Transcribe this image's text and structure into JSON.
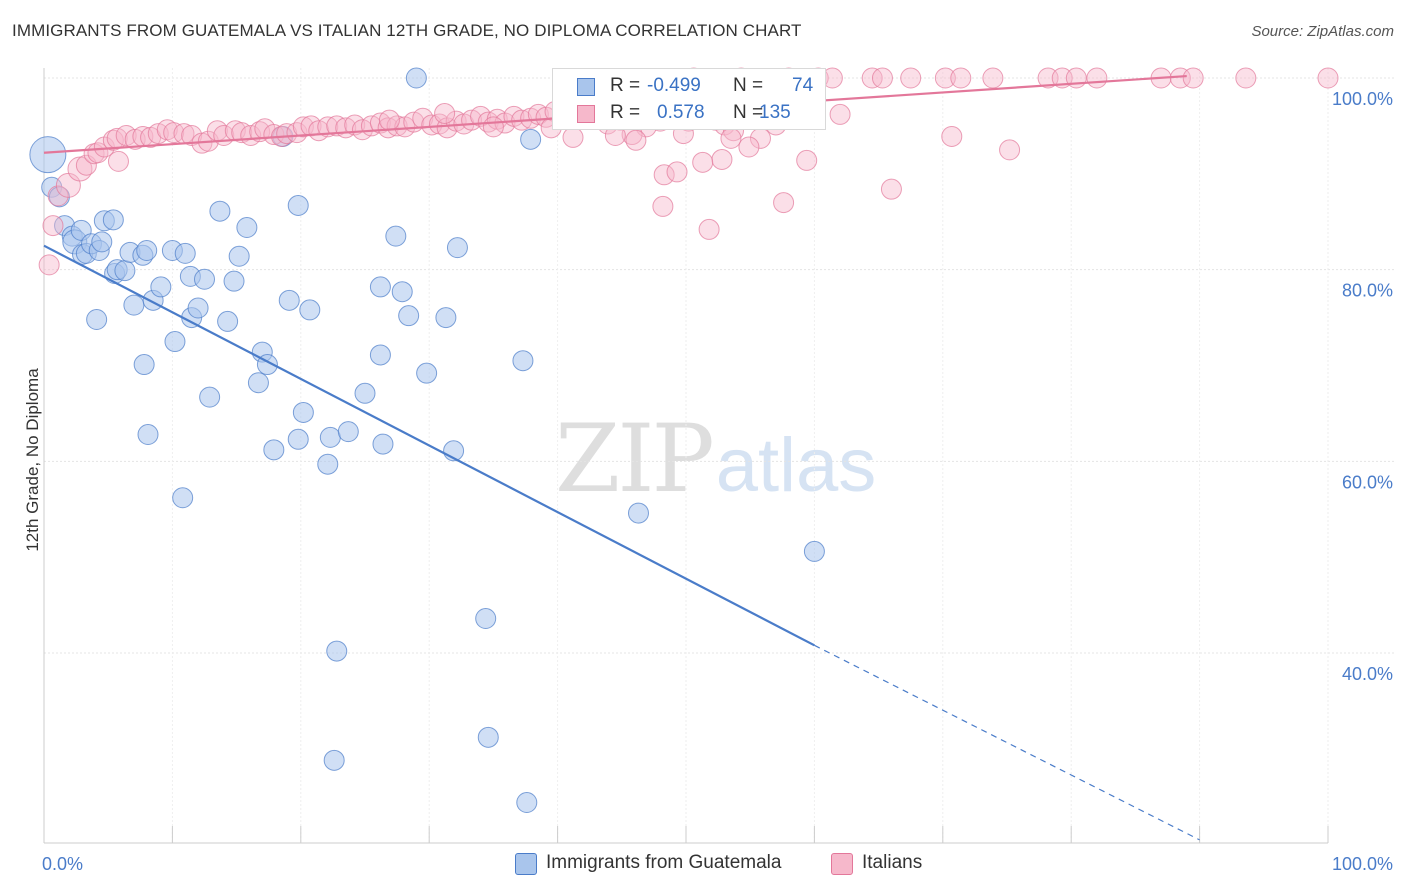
{
  "title": "IMMIGRANTS FROM GUATEMALA VS ITALIAN 12TH GRADE, NO DIPLOMA CORRELATION CHART",
  "source": "Source: ZipAtlas.com",
  "watermark": {
    "zip": "ZIP",
    "atlas": "atlas"
  },
  "legend": {
    "r_label": "R =",
    "n_label": "N =",
    "rows": [
      {
        "name": "Immigrants from Guatemala",
        "r": "-0.499",
        "n": "74",
        "color": "#4a7cc9",
        "fill": "#a9c5ec"
      },
      {
        "name": "Italians",
        "r": "0.578",
        "n": "135",
        "color": "#e3779a",
        "fill": "#f6b8cb"
      }
    ]
  },
  "chart_data": {
    "type": "scatter",
    "title": "IMMIGRANTS FROM GUATEMALA VS ITALIAN 12TH GRADE, NO DIPLOMA CORRELATION CHART",
    "xlabel": "",
    "ylabel": "12th Grade, No Diploma",
    "xlim": [
      0,
      100
    ],
    "ylim": [
      20,
      103
    ],
    "x_tick_labels": [
      {
        "value": 0,
        "label": "0.0%"
      },
      {
        "value": 100,
        "label": "100.0%"
      }
    ],
    "y_tick_labels": [
      {
        "value": 100,
        "label": "100.0%"
      },
      {
        "value": 80,
        "label": "80.0%"
      },
      {
        "value": 60,
        "label": "60.0%"
      },
      {
        "value": 40,
        "label": "40.0%"
      }
    ],
    "grid": true,
    "legend_position": "top-center",
    "series": [
      {
        "name": "Immigrants from Guatemala",
        "color": "#4a7cc9",
        "fill": "#a9c5ec",
        "r": -0.499,
        "n": 74,
        "trend": {
          "x0": 0,
          "y0": 82.5,
          "x1": 60,
          "y1": 40.8,
          "dash_to_x": 90,
          "dash_to_y": 20.5
        },
        "points": [
          [
            0.3,
            92,
            18
          ],
          [
            0.6,
            88.6,
            10
          ],
          [
            1.2,
            87.6,
            10
          ],
          [
            1.6,
            84.6,
            10
          ],
          [
            2.2,
            83.5,
            10
          ],
          [
            2.4,
            82.9,
            12
          ],
          [
            2.9,
            84.1,
            10
          ],
          [
            3.0,
            81.6,
            10
          ],
          [
            3.3,
            81.7,
            10
          ],
          [
            3.7,
            82.7,
            10
          ],
          [
            4.3,
            82.0,
            10
          ],
          [
            4.5,
            82.9,
            10
          ],
          [
            4.7,
            85.1,
            10
          ],
          [
            5.5,
            79.6,
            10
          ],
          [
            5.7,
            80.0,
            10
          ],
          [
            4.1,
            74.8,
            10
          ],
          [
            6.3,
            79.9,
            10
          ],
          [
            5.4,
            85.2,
            10
          ],
          [
            6.7,
            81.8,
            10
          ],
          [
            7.0,
            76.3,
            10
          ],
          [
            7.7,
            81.5,
            10
          ],
          [
            8.0,
            82.0,
            10
          ],
          [
            8.5,
            76.8,
            10
          ],
          [
            9.1,
            78.2,
            10
          ],
          [
            8.1,
            62.8,
            10
          ],
          [
            7.8,
            70.1,
            10
          ],
          [
            10.0,
            82.0,
            10
          ],
          [
            10.2,
            72.5,
            10
          ],
          [
            11.0,
            81.7,
            10
          ],
          [
            11.4,
            79.3,
            10
          ],
          [
            11.5,
            75.0,
            10
          ],
          [
            12.0,
            76.0,
            10
          ],
          [
            12.5,
            79.0,
            10
          ],
          [
            12.9,
            66.7,
            10
          ],
          [
            10.8,
            56.2,
            10
          ],
          [
            13.7,
            86.1,
            10
          ],
          [
            14.3,
            74.6,
            10
          ],
          [
            14.8,
            78.8,
            10
          ],
          [
            15.2,
            81.4,
            10
          ],
          [
            15.8,
            84.4,
            10
          ],
          [
            16.7,
            68.2,
            10
          ],
          [
            17.0,
            71.4,
            10
          ],
          [
            17.4,
            70.1,
            10
          ],
          [
            17.9,
            61.2,
            10
          ],
          [
            18.6,
            93.9,
            10
          ],
          [
            19.1,
            76.8,
            10
          ],
          [
            19.8,
            62.3,
            10
          ],
          [
            20.2,
            65.1,
            10
          ],
          [
            19.8,
            86.7,
            10
          ],
          [
            20.7,
            75.8,
            10
          ],
          [
            22.1,
            59.7,
            10
          ],
          [
            22.3,
            62.5,
            10
          ],
          [
            22.8,
            40.2,
            10
          ],
          [
            22.6,
            28.8,
            10
          ],
          [
            23.7,
            63.1,
            10
          ],
          [
            25.0,
            67.1,
            10
          ],
          [
            26.2,
            78.2,
            10
          ],
          [
            26.2,
            71.1,
            10
          ],
          [
            26.4,
            61.8,
            10
          ],
          [
            27.4,
            83.5,
            10
          ],
          [
            27.9,
            77.7,
            10
          ],
          [
            28.4,
            75.2,
            10
          ],
          [
            29.0,
            100.0,
            10
          ],
          [
            29.8,
            69.2,
            10
          ],
          [
            31.3,
            75.0,
            10
          ],
          [
            31.9,
            61.1,
            10
          ],
          [
            32.2,
            82.3,
            10
          ],
          [
            34.4,
            43.6,
            10
          ],
          [
            34.6,
            31.2,
            10
          ],
          [
            37.3,
            70.5,
            10
          ],
          [
            37.6,
            24.4,
            10
          ],
          [
            37.9,
            93.6,
            10
          ],
          [
            43.1,
            97.6,
            10
          ],
          [
            46.3,
            54.6,
            10
          ],
          [
            60.0,
            50.6,
            10
          ]
        ]
      },
      {
        "name": "Italians",
        "color": "#e3779a",
        "fill": "#f6b8cb",
        "r": 0.578,
        "n": 135,
        "trend": {
          "x0": 0,
          "y0": 92.2,
          "x1": 89,
          "y1": 100.2
        },
        "points": [
          [
            0.4,
            80.5,
            10
          ],
          [
            0.7,
            84.6,
            10
          ],
          [
            1.1,
            87.7,
            10
          ],
          [
            1.9,
            88.8,
            12
          ],
          [
            2.8,
            90.5,
            12
          ],
          [
            3.3,
            90.9,
            10
          ],
          [
            3.9,
            92.1,
            10
          ],
          [
            4.2,
            92.2,
            10
          ],
          [
            4.7,
            92.8,
            10
          ],
          [
            5.4,
            93.5,
            10
          ],
          [
            5.7,
            93.7,
            10
          ],
          [
            5.8,
            91.3,
            10
          ],
          [
            6.4,
            94.0,
            10
          ],
          [
            7.1,
            93.6,
            10
          ],
          [
            7.7,
            93.9,
            10
          ],
          [
            8.3,
            93.8,
            10
          ],
          [
            8.9,
            94.2,
            10
          ],
          [
            9.6,
            94.6,
            10
          ],
          [
            10.1,
            94.3,
            10
          ],
          [
            10.9,
            94.2,
            10
          ],
          [
            11.5,
            94.0,
            10
          ],
          [
            12.3,
            93.2,
            10
          ],
          [
            12.8,
            93.4,
            10
          ],
          [
            13.5,
            94.5,
            10
          ],
          [
            14.0,
            94.0,
            10
          ],
          [
            14.9,
            94.5,
            10
          ],
          [
            15.4,
            94.3,
            10
          ],
          [
            16.1,
            94.0,
            10
          ],
          [
            16.8,
            94.4,
            10
          ],
          [
            17.2,
            94.7,
            10
          ],
          [
            17.9,
            94.1,
            10
          ],
          [
            18.5,
            93.9,
            10
          ],
          [
            18.9,
            94.2,
            10
          ],
          [
            19.7,
            94.3,
            10
          ],
          [
            20.2,
            94.9,
            10
          ],
          [
            20.8,
            95.0,
            10
          ],
          [
            21.4,
            94.5,
            10
          ],
          [
            22.1,
            94.9,
            10
          ],
          [
            22.8,
            95.0,
            10
          ],
          [
            23.5,
            94.8,
            10
          ],
          [
            24.2,
            95.1,
            10
          ],
          [
            24.8,
            94.6,
            10
          ],
          [
            25.5,
            95.0,
            10
          ],
          [
            26.2,
            95.3,
            10
          ],
          [
            26.8,
            94.8,
            10
          ],
          [
            27.5,
            95.0,
            10
          ],
          [
            28.1,
            94.9,
            10
          ],
          [
            28.8,
            95.4,
            10
          ],
          [
            29.5,
            95.8,
            10
          ],
          [
            30.2,
            95.1,
            10
          ],
          [
            30.8,
            95.2,
            10
          ],
          [
            31.4,
            94.8,
            10
          ],
          [
            32.1,
            95.5,
            10
          ],
          [
            32.7,
            95.2,
            10
          ],
          [
            33.3,
            95.6,
            10
          ],
          [
            34.0,
            96.0,
            10
          ],
          [
            34.6,
            95.4,
            10
          ],
          [
            35.3,
            95.7,
            10
          ],
          [
            35.9,
            95.3,
            10
          ],
          [
            36.6,
            96.0,
            10
          ],
          [
            37.2,
            95.6,
            10
          ],
          [
            37.9,
            95.8,
            10
          ],
          [
            38.5,
            96.2,
            10
          ],
          [
            39.1,
            95.9,
            10
          ],
          [
            39.8,
            96.5,
            10
          ],
          [
            40.4,
            96.1,
            10
          ],
          [
            41.0,
            96.3,
            10
          ],
          [
            41.7,
            96.6,
            10
          ],
          [
            42.3,
            96.2,
            10
          ],
          [
            43.0,
            95.8,
            10
          ],
          [
            43.6,
            96.4,
            10
          ],
          [
            44.3,
            96.8,
            10
          ],
          [
            44.9,
            95.6,
            10
          ],
          [
            45.6,
            96.1,
            10
          ],
          [
            46.2,
            96.4,
            10
          ],
          [
            46.9,
            94.9,
            10
          ],
          [
            47.5,
            96.5,
            10
          ],
          [
            48.2,
            96.8,
            10
          ],
          [
            26.9,
            95.6,
            10
          ],
          [
            31.2,
            96.3,
            10
          ],
          [
            35.0,
            94.9,
            10
          ],
          [
            39.5,
            94.8,
            10
          ],
          [
            45.8,
            94.1,
            10
          ],
          [
            46.1,
            93.5,
            10
          ],
          [
            48.0,
            95.5,
            10
          ],
          [
            48.7,
            97.7,
            10
          ],
          [
            49.2,
            96.7,
            10
          ],
          [
            50.2,
            95.5,
            10
          ],
          [
            50.6,
            100.0,
            10
          ],
          [
            51.1,
            96.2,
            10
          ],
          [
            52.3,
            95.6,
            10
          ],
          [
            53.0,
            95.1,
            10
          ],
          [
            53.7,
            94.5,
            10
          ],
          [
            54.3,
            100.0,
            10
          ],
          [
            55.0,
            96.3,
            10
          ],
          [
            56.0,
            95.8,
            10
          ],
          [
            57.0,
            95.1,
            10
          ],
          [
            58.0,
            100.0,
            10
          ],
          [
            59.0,
            96.0,
            10
          ],
          [
            41.2,
            93.8,
            10
          ],
          [
            43.9,
            95.2,
            10
          ],
          [
            44.5,
            94.0,
            10
          ],
          [
            48.2,
            86.6,
            10
          ],
          [
            49.8,
            94.2,
            10
          ],
          [
            52.8,
            91.5,
            10
          ],
          [
            55.8,
            93.7,
            10
          ],
          [
            60.3,
            100.0,
            10
          ],
          [
            62.0,
            96.2,
            10
          ],
          [
            48.3,
            89.9,
            10
          ],
          [
            49.3,
            90.2,
            10
          ],
          [
            51.3,
            91.2,
            10
          ],
          [
            51.8,
            84.2,
            10
          ],
          [
            53.5,
            93.7,
            10
          ],
          [
            54.9,
            92.8,
            10
          ],
          [
            57.6,
            87.0,
            10
          ],
          [
            59.4,
            91.4,
            10
          ],
          [
            61.4,
            100.0,
            10
          ],
          [
            64.5,
            100.0,
            10
          ],
          [
            65.3,
            100.0,
            10
          ],
          [
            66.0,
            88.4,
            10
          ],
          [
            67.5,
            100.0,
            10
          ],
          [
            70.2,
            100.0,
            10
          ],
          [
            71.4,
            100.0,
            10
          ],
          [
            73.9,
            100.0,
            10
          ],
          [
            70.7,
            93.9,
            10
          ],
          [
            75.2,
            92.5,
            10
          ],
          [
            78.2,
            100.0,
            10
          ],
          [
            79.3,
            100.0,
            10
          ],
          [
            80.4,
            100.0,
            10
          ],
          [
            82.0,
            100.0,
            10
          ],
          [
            87.0,
            100.0,
            10
          ],
          [
            88.5,
            100.0,
            10
          ],
          [
            89.5,
            100.0,
            10
          ],
          [
            93.6,
            100.0,
            10
          ],
          [
            100.0,
            100.0,
            10
          ]
        ]
      }
    ]
  }
}
